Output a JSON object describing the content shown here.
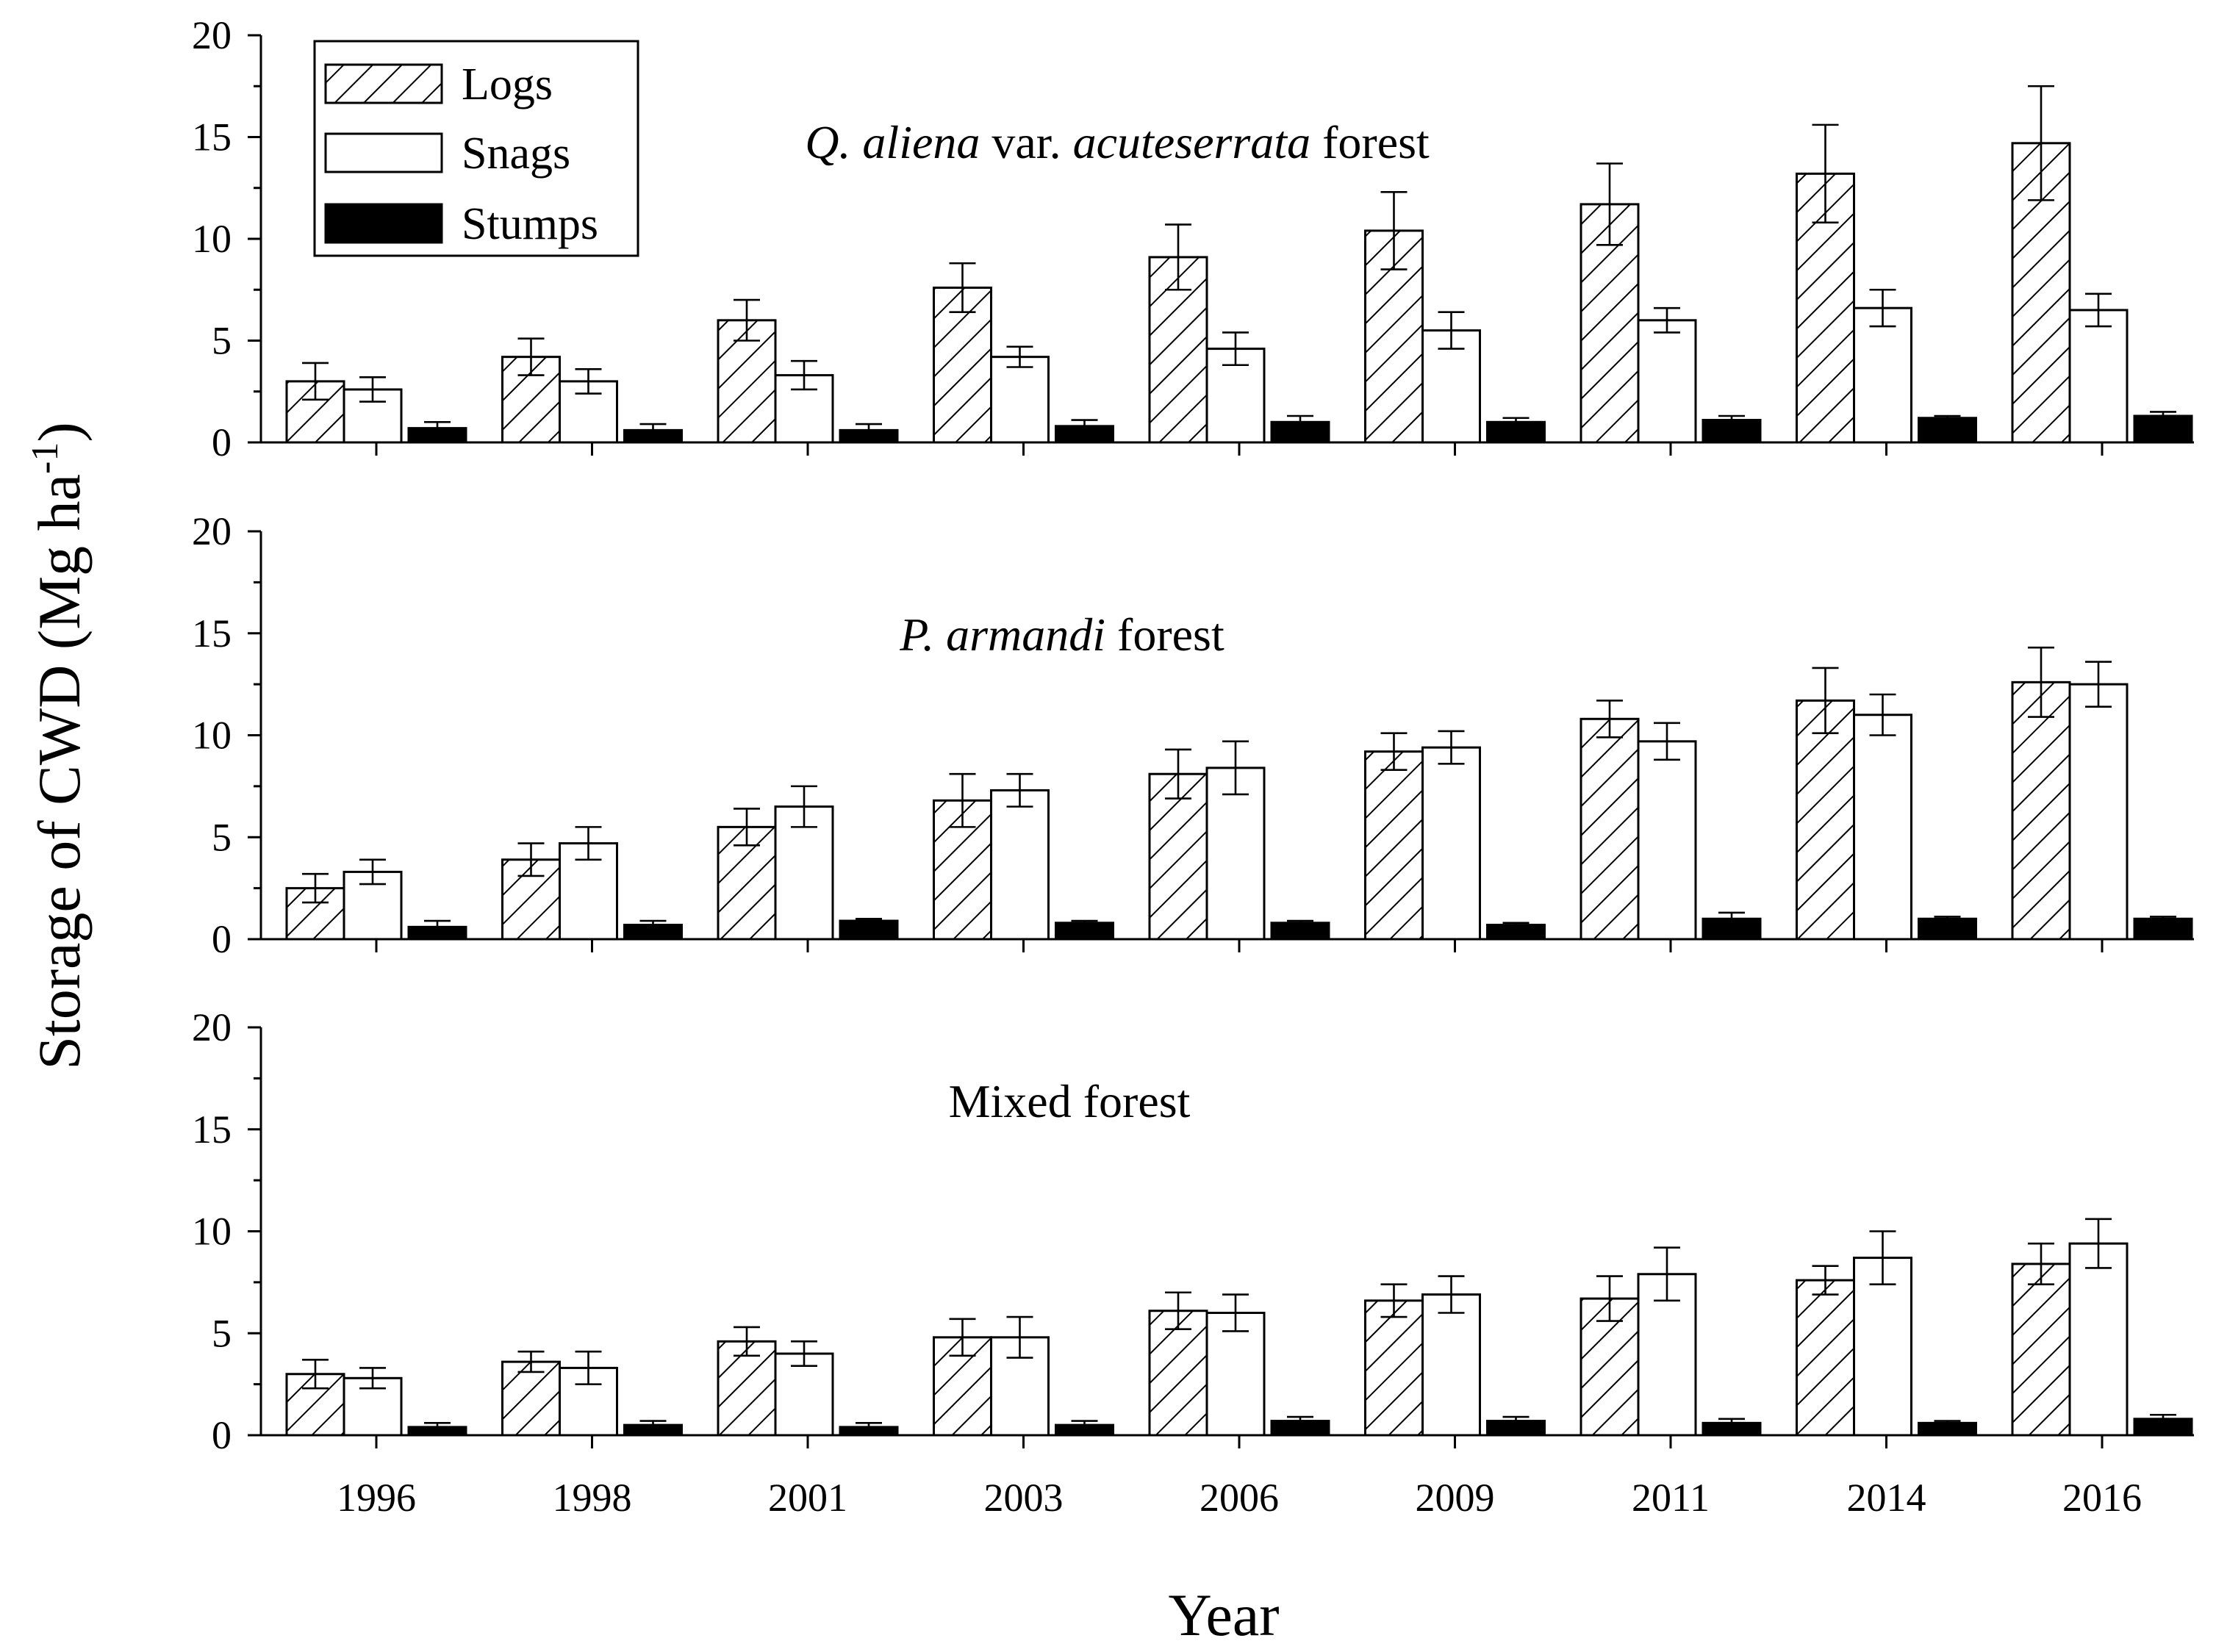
{
  "chart_data": {
    "type": "bar",
    "ylabel": "Storage of CWD (Mg ha",
    "ylabel_superscript": "-1",
    "ylabel_close": ")",
    "xlabel": "Year",
    "categories": [
      "1996",
      "1998",
      "2001",
      "2003",
      "2006",
      "2009",
      "2011",
      "2014",
      "2016"
    ],
    "ylim": [
      0,
      20
    ],
    "yticks": [
      "0",
      "5",
      "10",
      "15",
      "20"
    ],
    "legend": {
      "placement": "top-left",
      "entries": [
        {
          "name": "Logs",
          "style": "hatched"
        },
        {
          "name": "Snags",
          "style": "white"
        },
        {
          "name": "Stumps",
          "style": "black"
        }
      ]
    },
    "panels": [
      {
        "title_parts": [
          {
            "text": "Q. aliena",
            "italic": true
          },
          {
            "text": " var. ",
            "italic": false
          },
          {
            "text": "acuteserrata",
            "italic": true
          },
          {
            "text": " forest",
            "italic": false
          }
        ],
        "series": [
          {
            "name": "Logs",
            "values": [
              3.0,
              4.2,
              6.0,
              7.6,
              9.1,
              10.4,
              11.7,
              13.2,
              14.7
            ],
            "errors": [
              0.9,
              0.9,
              1.0,
              1.2,
              1.6,
              1.9,
              2.0,
              2.4,
              2.8
            ]
          },
          {
            "name": "Snags",
            "values": [
              2.6,
              3.0,
              3.3,
              4.2,
              4.6,
              5.5,
              6.0,
              6.6,
              6.5
            ],
            "errors": [
              0.6,
              0.6,
              0.7,
              0.5,
              0.8,
              0.9,
              0.6,
              0.9,
              0.8
            ]
          },
          {
            "name": "Stumps",
            "values": [
              0.7,
              0.6,
              0.6,
              0.8,
              1.0,
              1.0,
              1.1,
              1.2,
              1.3
            ],
            "errors": [
              0.3,
              0.3,
              0.3,
              0.3,
              0.3,
              0.2,
              0.2,
              0.1,
              0.2
            ]
          }
        ]
      },
      {
        "title_parts": [
          {
            "text": "P. armandi",
            "italic": true
          },
          {
            "text": " forest",
            "italic": false
          }
        ],
        "series": [
          {
            "name": "Logs",
            "values": [
              2.5,
              3.9,
              5.5,
              6.8,
              8.1,
              9.2,
              10.8,
              11.7,
              12.6
            ],
            "errors": [
              0.7,
              0.8,
              0.9,
              1.3,
              1.2,
              0.9,
              0.9,
              1.6,
              1.7
            ]
          },
          {
            "name": "Snags",
            "values": [
              3.3,
              4.7,
              6.5,
              7.3,
              8.4,
              9.4,
              9.7,
              11.0,
              12.5
            ],
            "errors": [
              0.6,
              0.8,
              1.0,
              0.8,
              1.3,
              0.8,
              0.9,
              1.0,
              1.1
            ]
          },
          {
            "name": "Stumps",
            "values": [
              0.6,
              0.7,
              0.9,
              0.8,
              0.8,
              0.7,
              1.0,
              1.0,
              1.0
            ],
            "errors": [
              0.3,
              0.2,
              0.1,
              0.1,
              0.1,
              0.1,
              0.3,
              0.1,
              0.1
            ]
          }
        ]
      },
      {
        "title_parts": [
          {
            "text": "Mixed forest",
            "italic": false
          }
        ],
        "series": [
          {
            "name": "Logs",
            "values": [
              3.0,
              3.6,
              4.6,
              4.8,
              6.1,
              6.6,
              6.7,
              7.6,
              8.4
            ],
            "errors": [
              0.7,
              0.5,
              0.7,
              0.9,
              0.9,
              0.8,
              1.1,
              0.7,
              1.0
            ]
          },
          {
            "name": "Snags",
            "values": [
              2.8,
              3.3,
              4.0,
              4.8,
              6.0,
              6.9,
              7.9,
              8.7,
              9.4
            ],
            "errors": [
              0.5,
              0.8,
              0.6,
              1.0,
              0.9,
              0.9,
              1.3,
              1.3,
              1.2
            ]
          },
          {
            "name": "Stumps",
            "values": [
              0.4,
              0.5,
              0.4,
              0.5,
              0.7,
              0.7,
              0.6,
              0.6,
              0.8
            ],
            "errors": [
              0.2,
              0.2,
              0.2,
              0.2,
              0.2,
              0.2,
              0.2,
              0.1,
              0.2
            ]
          }
        ]
      }
    ]
  }
}
